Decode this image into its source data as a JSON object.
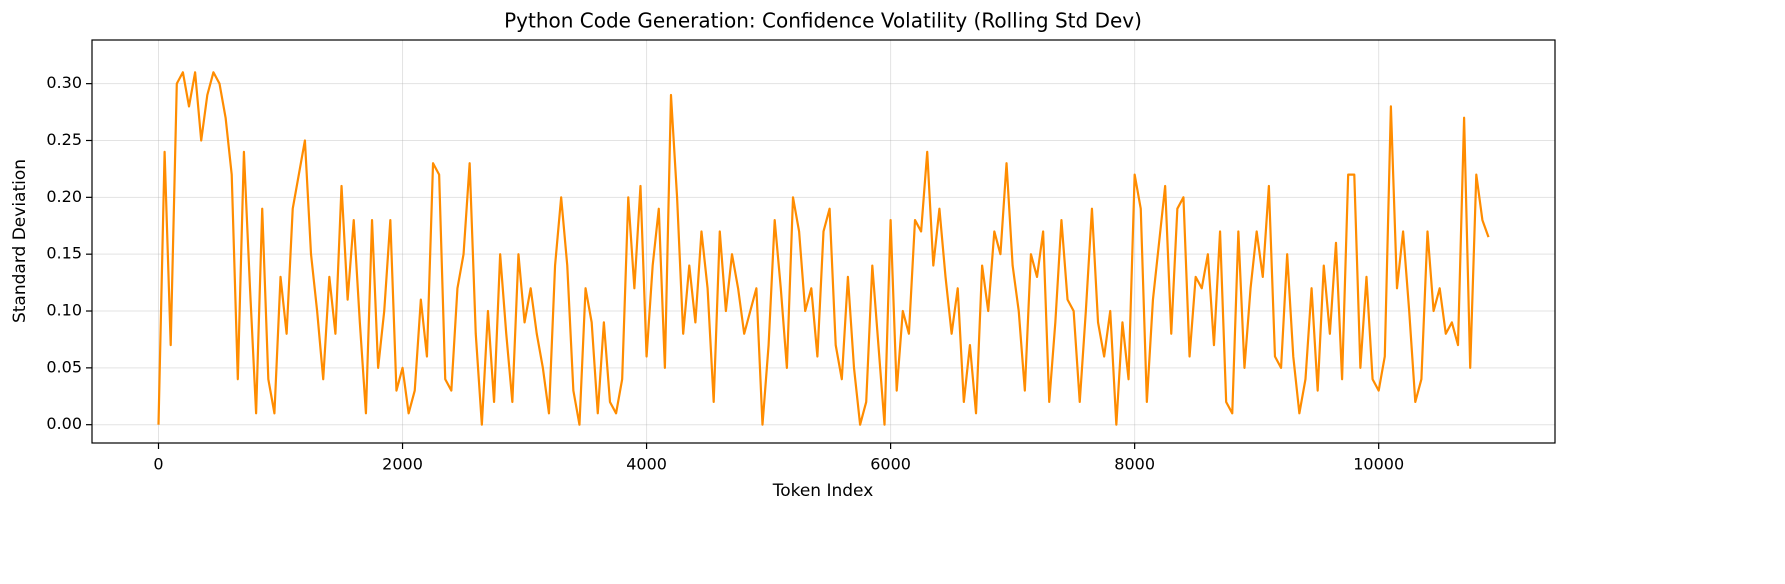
{
  "chart_data": {
    "type": "line",
    "title": "Python Code Generation: Confidence Volatility (Rolling Std Dev)",
    "xlabel": "Token Index",
    "ylabel": "Standard Deviation",
    "x": [
      0,
      50,
      100,
      150,
      200,
      250,
      300,
      350,
      400,
      450,
      500,
      550,
      600,
      650,
      700,
      750,
      800,
      850,
      900,
      950,
      1000,
      1050,
      1100,
      1150,
      1200,
      1250,
      1300,
      1350,
      1400,
      1450,
      1500,
      1550,
      1600,
      1650,
      1700,
      1750,
      1800,
      1850,
      1900,
      1950,
      2000,
      2050,
      2100,
      2150,
      2200,
      2250,
      2300,
      2350,
      2400,
      2450,
      2500,
      2550,
      2600,
      2650,
      2700,
      2750,
      2800,
      2850,
      2900,
      2950,
      3000,
      3050,
      3100,
      3150,
      3200,
      3250,
      3300,
      3350,
      3400,
      3450,
      3500,
      3550,
      3600,
      3650,
      3700,
      3750,
      3800,
      3850,
      3900,
      3950,
      4000,
      4050,
      4100,
      4150,
      4200,
      4250,
      4300,
      4350,
      4400,
      4450,
      4500,
      4550,
      4600,
      4650,
      4700,
      4750,
      4800,
      4850,
      4900,
      4950,
      5000,
      5050,
      5100,
      5150,
      5200,
      5250,
      5300,
      5350,
      5400,
      5450,
      5500,
      5550,
      5600,
      5650,
      5700,
      5750,
      5800,
      5850,
      5900,
      5950,
      6000,
      6050,
      6100,
      6150,
      6200,
      6250,
      6300,
      6350,
      6400,
      6450,
      6500,
      6550,
      6600,
      6650,
      6700,
      6750,
      6800,
      6850,
      6900,
      6950,
      7000,
      7050,
      7100,
      7150,
      7200,
      7250,
      7300,
      7350,
      7400,
      7450,
      7500,
      7550,
      7600,
      7650,
      7700,
      7750,
      7800,
      7850,
      7900,
      7950,
      8000,
      8050,
      8100,
      8150,
      8200,
      8250,
      8300,
      8350,
      8400,
      8450,
      8500,
      8550,
      8600,
      8650,
      8700,
      8750,
      8800,
      8850,
      8900,
      8950,
      9000,
      9050,
      9100,
      9150,
      9200,
      9250,
      9300,
      9350,
      9400,
      9450,
      9500,
      9550,
      9600,
      9650,
      9700,
      9750,
      9800,
      9850,
      9900,
      9950,
      10000,
      10050,
      10100,
      10150,
      10200,
      10250,
      10300,
      10350,
      10400,
      10450,
      10500,
      10550,
      10600,
      10650,
      10700,
      10750,
      10800,
      10850,
      10900
    ],
    "series": [
      {
        "color": "#ff8c00",
        "values": [
          0.0,
          0.24,
          0.07,
          0.3,
          0.31,
          0.28,
          0.31,
          0.25,
          0.29,
          0.31,
          0.3,
          0.27,
          0.22,
          0.04,
          0.24,
          0.12,
          0.01,
          0.19,
          0.04,
          0.01,
          0.13,
          0.08,
          0.19,
          0.22,
          0.25,
          0.15,
          0.1,
          0.04,
          0.13,
          0.08,
          0.21,
          0.11,
          0.18,
          0.09,
          0.01,
          0.18,
          0.05,
          0.1,
          0.18,
          0.03,
          0.05,
          0.01,
          0.03,
          0.11,
          0.06,
          0.23,
          0.22,
          0.04,
          0.03,
          0.12,
          0.15,
          0.23,
          0.08,
          0.0,
          0.1,
          0.02,
          0.15,
          0.08,
          0.02,
          0.15,
          0.09,
          0.12,
          0.08,
          0.05,
          0.01,
          0.14,
          0.2,
          0.14,
          0.03,
          0.0,
          0.12,
          0.09,
          0.01,
          0.09,
          0.02,
          0.01,
          0.04,
          0.2,
          0.12,
          0.21,
          0.06,
          0.14,
          0.19,
          0.05,
          0.29,
          0.2,
          0.08,
          0.14,
          0.09,
          0.17,
          0.12,
          0.02,
          0.17,
          0.1,
          0.15,
          0.12,
          0.08,
          0.1,
          0.12,
          0.0,
          0.07,
          0.18,
          0.12,
          0.05,
          0.2,
          0.17,
          0.1,
          0.12,
          0.06,
          0.17,
          0.19,
          0.07,
          0.04,
          0.13,
          0.05,
          0.0,
          0.02,
          0.14,
          0.07,
          0.0,
          0.18,
          0.03,
          0.1,
          0.08,
          0.18,
          0.17,
          0.24,
          0.14,
          0.19,
          0.13,
          0.08,
          0.12,
          0.02,
          0.07,
          0.01,
          0.14,
          0.1,
          0.17,
          0.15,
          0.23,
          0.14,
          0.1,
          0.03,
          0.15,
          0.13,
          0.17,
          0.02,
          0.09,
          0.18,
          0.11,
          0.1,
          0.02,
          0.1,
          0.19,
          0.09,
          0.06,
          0.1,
          0.0,
          0.09,
          0.04,
          0.22,
          0.19,
          0.02,
          0.11,
          0.16,
          0.21,
          0.08,
          0.19,
          0.2,
          0.06,
          0.13,
          0.12,
          0.15,
          0.07,
          0.17,
          0.02,
          0.01,
          0.17,
          0.05,
          0.12,
          0.17,
          0.13,
          0.21,
          0.06,
          0.05,
          0.15,
          0.06,
          0.01,
          0.04,
          0.12,
          0.03,
          0.14,
          0.08,
          0.16,
          0.04,
          0.22,
          0.22,
          0.05,
          0.13,
          0.04,
          0.03,
          0.06,
          0.28,
          0.12,
          0.17,
          0.1,
          0.02,
          0.04,
          0.17,
          0.1,
          0.12,
          0.08,
          0.09,
          0.07,
          0.27,
          0.05,
          0.22,
          0.18,
          0.165
        ]
      }
    ],
    "xlim": [
      -545,
      11445
    ],
    "ylim": [
      -0.0161,
      0.3384
    ],
    "xticks": [
      0,
      2000,
      4000,
      6000,
      8000,
      10000
    ],
    "yticks": [
      {
        "value": 0,
        "label": "0.00"
      },
      0.05,
      {
        "value": 0.1,
        "label": "0.10"
      },
      0.15,
      {
        "value": 0.2,
        "label": "0.20"
      },
      0.25,
      {
        "value": 0.3,
        "label": "0.30"
      }
    ],
    "grid": true
  }
}
